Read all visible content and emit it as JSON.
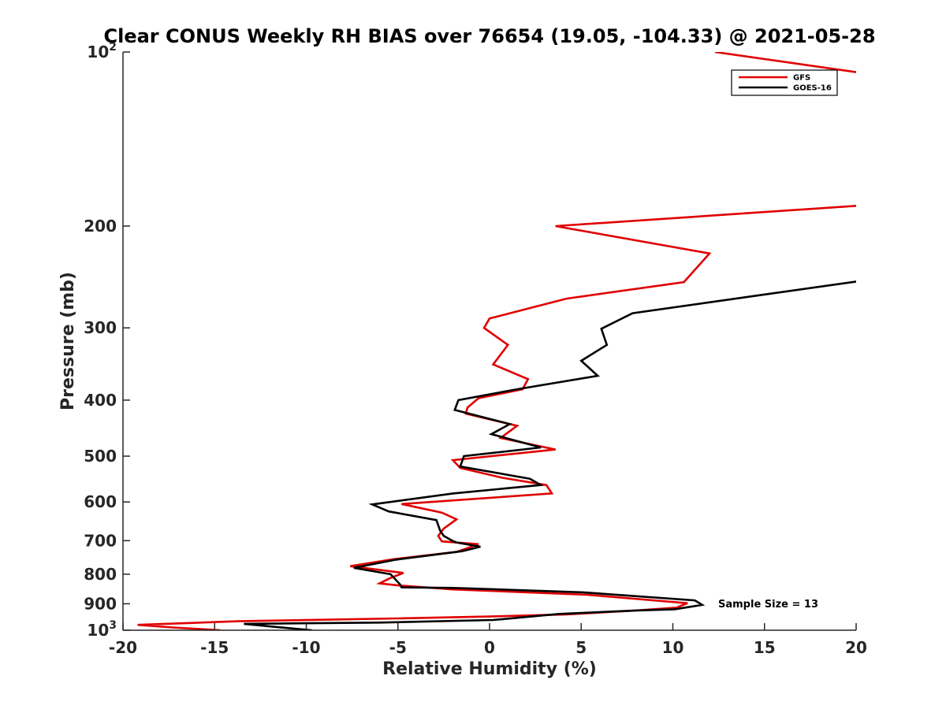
{
  "chart_data": {
    "type": "line",
    "title": "Clear CONUS Weekly RH BIAS over 76654 (19.05, -104.33) @ 2021-05-28",
    "xlabel": "Relative Humidity (%)",
    "ylabel": "Pressure (mb)",
    "xlim": [
      -20,
      20
    ],
    "ylim": [
      100,
      1000
    ],
    "y_scale": "log",
    "y_reversed": true,
    "grid": false,
    "legend_position": "top-right",
    "x_ticks": [
      "-20",
      "-15",
      "-10",
      "-5",
      "0",
      "5",
      "10",
      "15",
      "20"
    ],
    "y_ticks": [
      {
        "value": 100,
        "base": "10",
        "exp": "2"
      },
      {
        "value": 200,
        "label": "200"
      },
      {
        "value": 300,
        "label": "300"
      },
      {
        "value": 400,
        "label": "400"
      },
      {
        "value": 500,
        "label": "500"
      },
      {
        "value": 600,
        "label": "600"
      },
      {
        "value": 700,
        "label": "700"
      },
      {
        "value": 800,
        "label": "800"
      },
      {
        "value": 900,
        "label": "900"
      },
      {
        "value": 1000,
        "base": "10",
        "exp": "3"
      }
    ],
    "annotation": "Sample Size = 13",
    "series": [
      {
        "name": "GFS",
        "color": "#e00000",
        "points": [
          [
            12.3,
            100
          ],
          [
            20.6,
            109
          ],
          [
            20.6,
            184
          ],
          [
            3.6,
            200
          ],
          [
            12,
            223
          ],
          [
            10.6,
            250
          ],
          [
            4.2,
            267
          ],
          [
            0,
            289
          ],
          [
            -0.3,
            300
          ],
          [
            1,
            321
          ],
          [
            0.2,
            347
          ],
          [
            2.1,
            368
          ],
          [
            1.8,
            383
          ],
          [
            -0.6,
            397
          ],
          [
            -1.2,
            412
          ],
          [
            -1.3,
            422
          ],
          [
            1.5,
            443
          ],
          [
            0.6,
            465
          ],
          [
            3.6,
            487
          ],
          [
            -2,
            508
          ],
          [
            -1.6,
            524
          ],
          [
            0.7,
            545
          ],
          [
            3.1,
            561
          ],
          [
            3.4,
            580
          ],
          [
            -4.8,
            605
          ],
          [
            -2.6,
            626
          ],
          [
            -1.8,
            643
          ],
          [
            -2.5,
            667
          ],
          [
            -2.8,
            687
          ],
          [
            -2.6,
            702
          ],
          [
            -0.6,
            710
          ],
          [
            -1.8,
            732
          ],
          [
            -5.3,
            754
          ],
          [
            -7.6,
            775
          ],
          [
            -4.7,
            796
          ],
          [
            -5.4,
            812
          ],
          [
            -6,
            830
          ],
          [
            -4.9,
            837
          ],
          [
            -2,
            850
          ],
          [
            5.3,
            868
          ],
          [
            10.8,
            898
          ],
          [
            10.2,
            914
          ],
          [
            7.6,
            926
          ],
          [
            4.2,
            939
          ],
          [
            0,
            947
          ],
          [
            -5,
            954
          ],
          [
            -13.7,
            965
          ],
          [
            -19.2,
            979
          ],
          [
            -17.3,
            989
          ],
          [
            -14.7,
            1000
          ]
        ]
      },
      {
        "name": "GOES-16",
        "color": "#000000",
        "points": [
          [
            20.6,
            248
          ],
          [
            14.9,
            263
          ],
          [
            7.8,
            283
          ],
          [
            6.1,
            301
          ],
          [
            6.4,
            321
          ],
          [
            5,
            342
          ],
          [
            5.9,
            363
          ],
          [
            1.5,
            383
          ],
          [
            -1.7,
            400
          ],
          [
            -1.9,
            416
          ],
          [
            1.1,
            440
          ],
          [
            0.1,
            458
          ],
          [
            2.8,
            483
          ],
          [
            -1.4,
            500
          ],
          [
            -1.6,
            521
          ],
          [
            2.2,
            547
          ],
          [
            2.8,
            561
          ],
          [
            -2,
            580
          ],
          [
            -6.4,
            606
          ],
          [
            -5.5,
            623
          ],
          [
            -2.9,
            645
          ],
          [
            -2.7,
            672
          ],
          [
            -2.5,
            687
          ],
          [
            -2,
            701
          ],
          [
            -1.8,
            705
          ],
          [
            -0.5,
            717
          ],
          [
            -1.5,
            730
          ],
          [
            -5.1,
            755
          ],
          [
            -7.4,
            780
          ],
          [
            -5.4,
            800
          ],
          [
            -4.9,
            832
          ],
          [
            -4.8,
            843
          ],
          [
            -2,
            845
          ],
          [
            0,
            849
          ],
          [
            5.1,
            860
          ],
          [
            11.2,
            888
          ],
          [
            11.6,
            904
          ],
          [
            10.1,
            920
          ],
          [
            7.9,
            925
          ],
          [
            3.8,
            937
          ],
          [
            0.2,
            960
          ],
          [
            -6,
            970
          ],
          [
            -13.4,
            975
          ],
          [
            -11.5,
            988
          ],
          [
            -9.7,
            1000
          ]
        ]
      }
    ]
  }
}
